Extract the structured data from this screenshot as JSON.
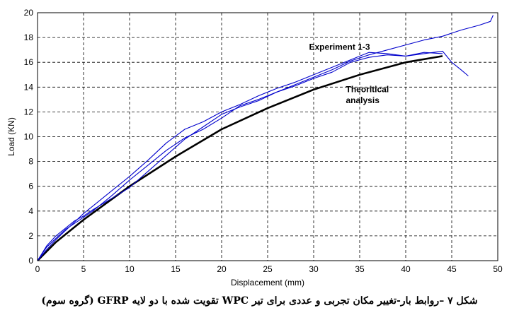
{
  "caption": "شکل ۷ –روابط بار-تغییر مکان تجربی و عددی برای تیر WPC تقویت شده با دو لایه GFRP (گروه سوم)",
  "chart_data": {
    "type": "line",
    "xlabel": "Displacement (mm)",
    "ylabel": "Load (KN)",
    "xlim": [
      0,
      50
    ],
    "ylim": [
      0,
      20
    ],
    "xticks": [
      0,
      5,
      10,
      15,
      20,
      25,
      30,
      35,
      40,
      45,
      50
    ],
    "yticks": [
      0,
      2,
      4,
      6,
      8,
      10,
      12,
      14,
      16,
      18,
      20
    ],
    "grid": true,
    "grid_style": "dashed",
    "annotations": [
      {
        "text": "Experiment 1-3",
        "x": 29.5,
        "y": 17.0
      },
      {
        "text": "Theoritical",
        "x": 33.5,
        "y": 13.6
      },
      {
        "text": "analysis",
        "x": 33.5,
        "y": 12.7
      }
    ],
    "series": [
      {
        "color": "#000000",
        "x": [
          0,
          2,
          5,
          10,
          15,
          20,
          25,
          30,
          35,
          40,
          44
        ],
        "y": [
          0,
          1.5,
          3.3,
          6.0,
          8.4,
          10.6,
          12.3,
          13.8,
          15.0,
          16.0,
          16.5
        ]
      },
      {
        "color": "#0000cc",
        "x": [
          0,
          1,
          2,
          3,
          4,
          5,
          6,
          8,
          10,
          12,
          14,
          16,
          18,
          20,
          22,
          24,
          26,
          28,
          30,
          32,
          34,
          36,
          38,
          40,
          42,
          43,
          44,
          45,
          46,
          46.8
        ],
        "y": [
          0,
          1.2,
          2.0,
          2.6,
          3.2,
          3.6,
          4.1,
          5.0,
          5.9,
          7.2,
          8.5,
          9.8,
          10.8,
          11.8,
          12.4,
          12.9,
          13.6,
          14.1,
          14.7,
          15.2,
          16.0,
          16.4,
          16.6,
          16.5,
          16.7,
          16.8,
          16.9,
          16.0,
          15.4,
          14.9
        ]
      },
      {
        "color": "#0000cc",
        "x": [
          0,
          1,
          2,
          3,
          4,
          5,
          6,
          8,
          10,
          12,
          14,
          16,
          18,
          20,
          22,
          24,
          26,
          28,
          30,
          32,
          34,
          36,
          38,
          40,
          42,
          44
        ],
        "y": [
          0,
          0.9,
          1.7,
          2.4,
          3.1,
          3.8,
          4.4,
          5.6,
          6.8,
          8.1,
          9.5,
          10.6,
          11.2,
          12.0,
          12.6,
          13.3,
          13.9,
          14.4,
          15.0,
          15.6,
          16.2,
          16.8,
          16.7,
          16.5,
          16.8,
          16.7
        ]
      },
      {
        "color": "#0000cc",
        "x": [
          0,
          1,
          2,
          3,
          4,
          5,
          6,
          8,
          10,
          12,
          14,
          16,
          18,
          20,
          22,
          24,
          26,
          28,
          30,
          32,
          34,
          36,
          38,
          40,
          42,
          44,
          46,
          48,
          49.2,
          49.5
        ],
        "y": [
          0,
          1.1,
          1.8,
          2.5,
          3.0,
          3.5,
          4.0,
          5.2,
          6.5,
          7.7,
          8.9,
          9.9,
          10.6,
          11.5,
          12.5,
          13.0,
          13.6,
          14.2,
          14.8,
          15.4,
          16.1,
          16.6,
          17.0,
          17.4,
          17.8,
          18.1,
          18.6,
          19.0,
          19.3,
          19.8
        ]
      }
    ]
  }
}
